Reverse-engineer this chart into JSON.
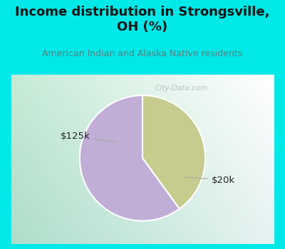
{
  "title": "Income distribution in Strongsville,\nOH (%)",
  "subtitle": "American Indian and Alaska Native residents",
  "slices": [
    {
      "label": "$125k",
      "value": 40,
      "color": "#c5cc8e"
    },
    {
      "label": "$20k",
      "value": 60,
      "color": "#c0aed6"
    }
  ],
  "bg_color": "#00e8e8",
  "chart_bg_topleft": "#f0faf5",
  "chart_bg_topright": "#ffffff",
  "chart_bg_bottomleft": "#c8eedd",
  "chart_bg_bottomright": "#e8f5ee",
  "title_color": "#111111",
  "subtitle_color": "#5a8080",
  "label_color": "#222222",
  "watermark": "City-Data.com",
  "start_angle": 90,
  "figsize": [
    4.0,
    3.5
  ],
  "dpi": 100,
  "pie_slice_values": [
    40,
    60
  ],
  "label_line_color": "#aaaaaa"
}
